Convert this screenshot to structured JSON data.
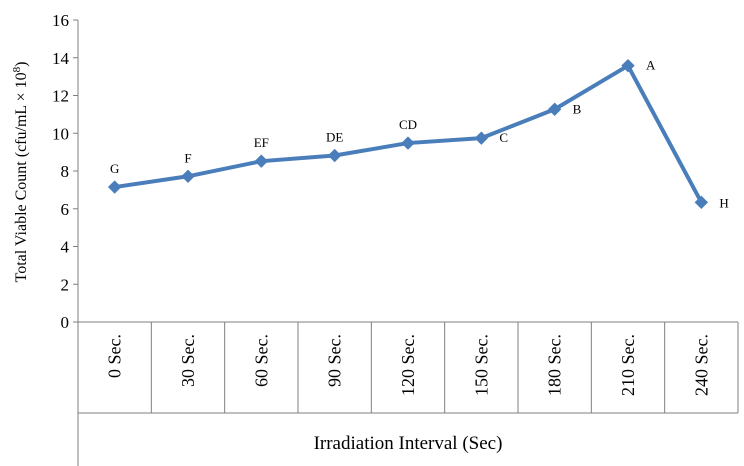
{
  "chart_data": {
    "type": "line",
    "xlabel": "Irradiation Interval (Sec)",
    "ylabel": "Total Viable Count (cfu/mL × 10",
    "ylabel_superscript": "8",
    "ylabel_close": ")",
    "ylim": [
      0,
      16
    ],
    "yticks": [
      "0",
      "2",
      "4",
      "6",
      "8",
      "10",
      "12",
      "14",
      "16"
    ],
    "grid": false,
    "legend": "none",
    "categories": [
      "0 Sec.",
      "30 Sec.",
      "60 Sec.",
      "90 Sec.",
      "120 Sec.",
      "150 Sec.",
      "180 Sec.",
      "210 Sec.",
      "240 Sec."
    ],
    "series": [
      {
        "values": [
          7.15,
          7.72,
          8.52,
          8.82,
          9.48,
          9.74,
          11.27,
          13.58,
          6.34
        ],
        "labels": [
          "G",
          "F",
          "EF",
          "DE",
          "CD",
          "C",
          "B",
          "A",
          "H"
        ],
        "color": "#4a7ebb",
        "marker": "diamond"
      }
    ]
  }
}
